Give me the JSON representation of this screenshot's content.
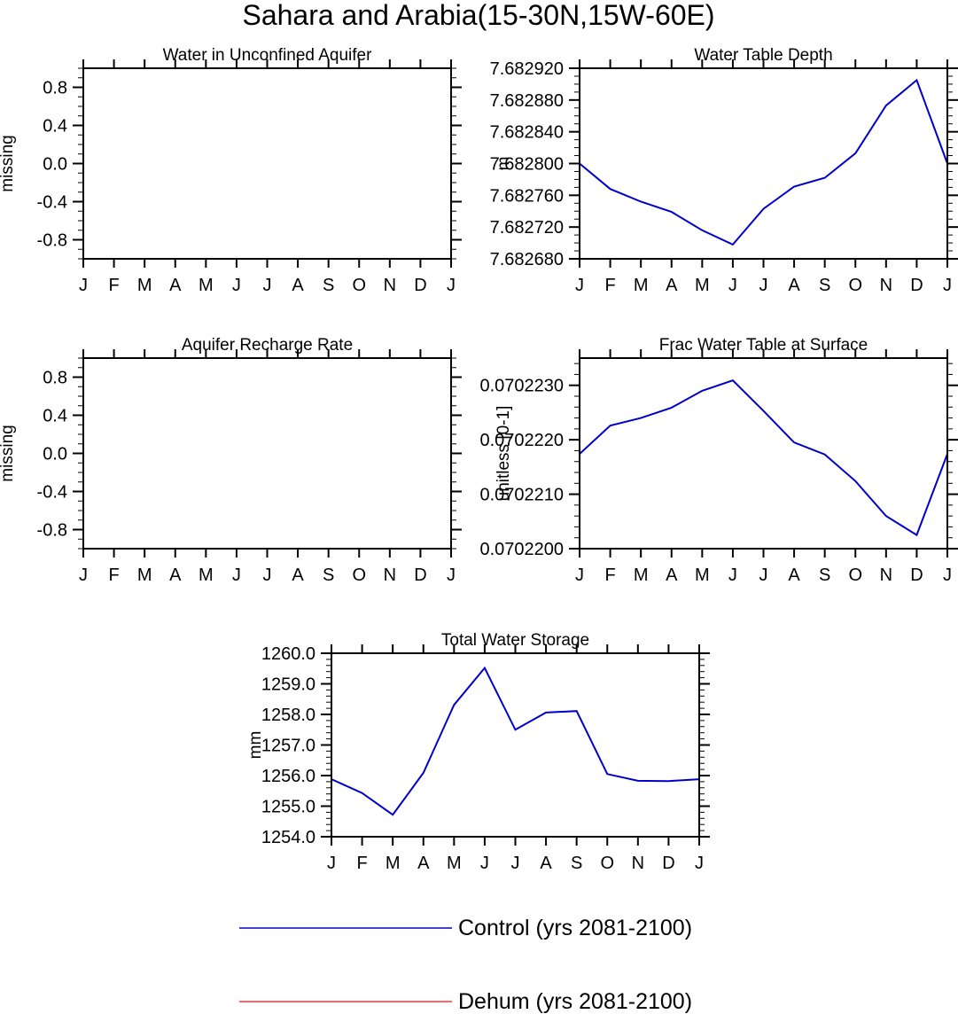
{
  "figure": {
    "title": "Sahara and Arabia(15-30N,15W-60E)"
  },
  "months": [
    "J",
    "F",
    "M",
    "A",
    "M",
    "J",
    "J",
    "A",
    "S",
    "O",
    "N",
    "D",
    "J"
  ],
  "legend": {
    "position": "bottom-center",
    "entries": [
      {
        "label": "Control (yrs 2081-2100)",
        "color": "#0000cc"
      },
      {
        "label": "Dehum (yrs 2081-2100)",
        "color": "#ff3333"
      }
    ]
  },
  "chart_data": [
    {
      "type": "line",
      "title": "Water in Unconfined Aquifer",
      "ylabel": "missing",
      "xlabel": "",
      "ylim": [
        -1.0,
        1.0
      ],
      "yticks": [
        -0.8,
        -0.4,
        0.0,
        0.4,
        0.8
      ],
      "ytick_labels": [
        "-0.8",
        "-0.4",
        "0.0",
        "0.4",
        "0.8"
      ],
      "y_minor_step": 0.1,
      "categories": [
        "J",
        "F",
        "M",
        "A",
        "M",
        "J",
        "J",
        "A",
        "S",
        "O",
        "N",
        "D",
        "J"
      ],
      "series": []
    },
    {
      "type": "line",
      "title": "Water Table Depth",
      "ylabel": "m",
      "xlabel": "",
      "ylim": [
        7.68268,
        7.68292
      ],
      "yticks": [
        7.68268,
        7.68272,
        7.68276,
        7.6828,
        7.68284,
        7.68288,
        7.68292
      ],
      "ytick_labels": [
        "7.682680",
        "7.682720",
        "7.682760",
        "7.682800",
        "7.682840",
        "7.682880",
        "7.682920"
      ],
      "y_minor_step": 1e-05,
      "categories": [
        "J",
        "F",
        "M",
        "A",
        "M",
        "J",
        "J",
        "A",
        "S",
        "O",
        "N",
        "D",
        "J"
      ],
      "series": [
        {
          "color": "#0000cc",
          "values": [
            7.6828,
            7.682768,
            7.682752,
            7.682739,
            7.682716,
            7.682698,
            7.682743,
            7.682771,
            7.682782,
            7.682813,
            7.682873,
            7.682905,
            7.6828
          ]
        }
      ]
    },
    {
      "type": "line",
      "title": "Aquifer Recharge Rate",
      "ylabel": "missing",
      "xlabel": "",
      "ylim": [
        -1.0,
        1.0
      ],
      "yticks": [
        -0.8,
        -0.4,
        0.0,
        0.4,
        0.8
      ],
      "ytick_labels": [
        "-0.8",
        "-0.4",
        "0.0",
        "0.4",
        "0.8"
      ],
      "y_minor_step": 0.1,
      "categories": [
        "J",
        "F",
        "M",
        "A",
        "M",
        "J",
        "J",
        "A",
        "S",
        "O",
        "N",
        "D",
        "J"
      ],
      "series": []
    },
    {
      "type": "line",
      "title": "Frac Water Table at Surface",
      "ylabel": "unitless [0-1]",
      "xlabel": "",
      "ylim": [
        0.07022,
        0.0702235
      ],
      "yticks": [
        0.07022,
        0.070221,
        0.070222,
        0.070223
      ],
      "ytick_labels": [
        "0.0702200",
        "0.0702210",
        "0.0702220",
        "0.0702230"
      ],
      "y_minor_step": 2e-07,
      "categories": [
        "J",
        "F",
        "M",
        "A",
        "M",
        "J",
        "J",
        "A",
        "S",
        "O",
        "N",
        "D",
        "J"
      ],
      "series": [
        {
          "color": "#0000cc",
          "values": [
            0.07022174,
            0.07022226,
            0.0702224,
            0.07022259,
            0.0702229,
            0.07022309,
            0.07022253,
            0.07022195,
            0.07022173,
            0.07022124,
            0.0702206,
            0.07022025,
            0.07022174
          ]
        }
      ]
    },
    {
      "type": "line",
      "title": "Total Water Storage",
      "ylabel": "mm",
      "xlabel": "",
      "ylim": [
        1254.0,
        1260.0
      ],
      "yticks": [
        1254.0,
        1255.0,
        1256.0,
        1257.0,
        1258.0,
        1259.0,
        1260.0
      ],
      "ytick_labels": [
        "1254.0",
        "1255.0",
        "1256.0",
        "1257.0",
        "1258.0",
        "1259.0",
        "1260.0"
      ],
      "y_minor_step": 0.2,
      "categories": [
        "J",
        "F",
        "M",
        "A",
        "M",
        "J",
        "J",
        "A",
        "S",
        "O",
        "N",
        "D",
        "J"
      ],
      "series": [
        {
          "color": "#0000cc",
          "values": [
            1255.88,
            1255.43,
            1254.72,
            1256.09,
            1258.31,
            1259.52,
            1257.5,
            1258.06,
            1258.11,
            1256.05,
            1255.83,
            1255.82,
            1255.88
          ]
        }
      ]
    }
  ]
}
